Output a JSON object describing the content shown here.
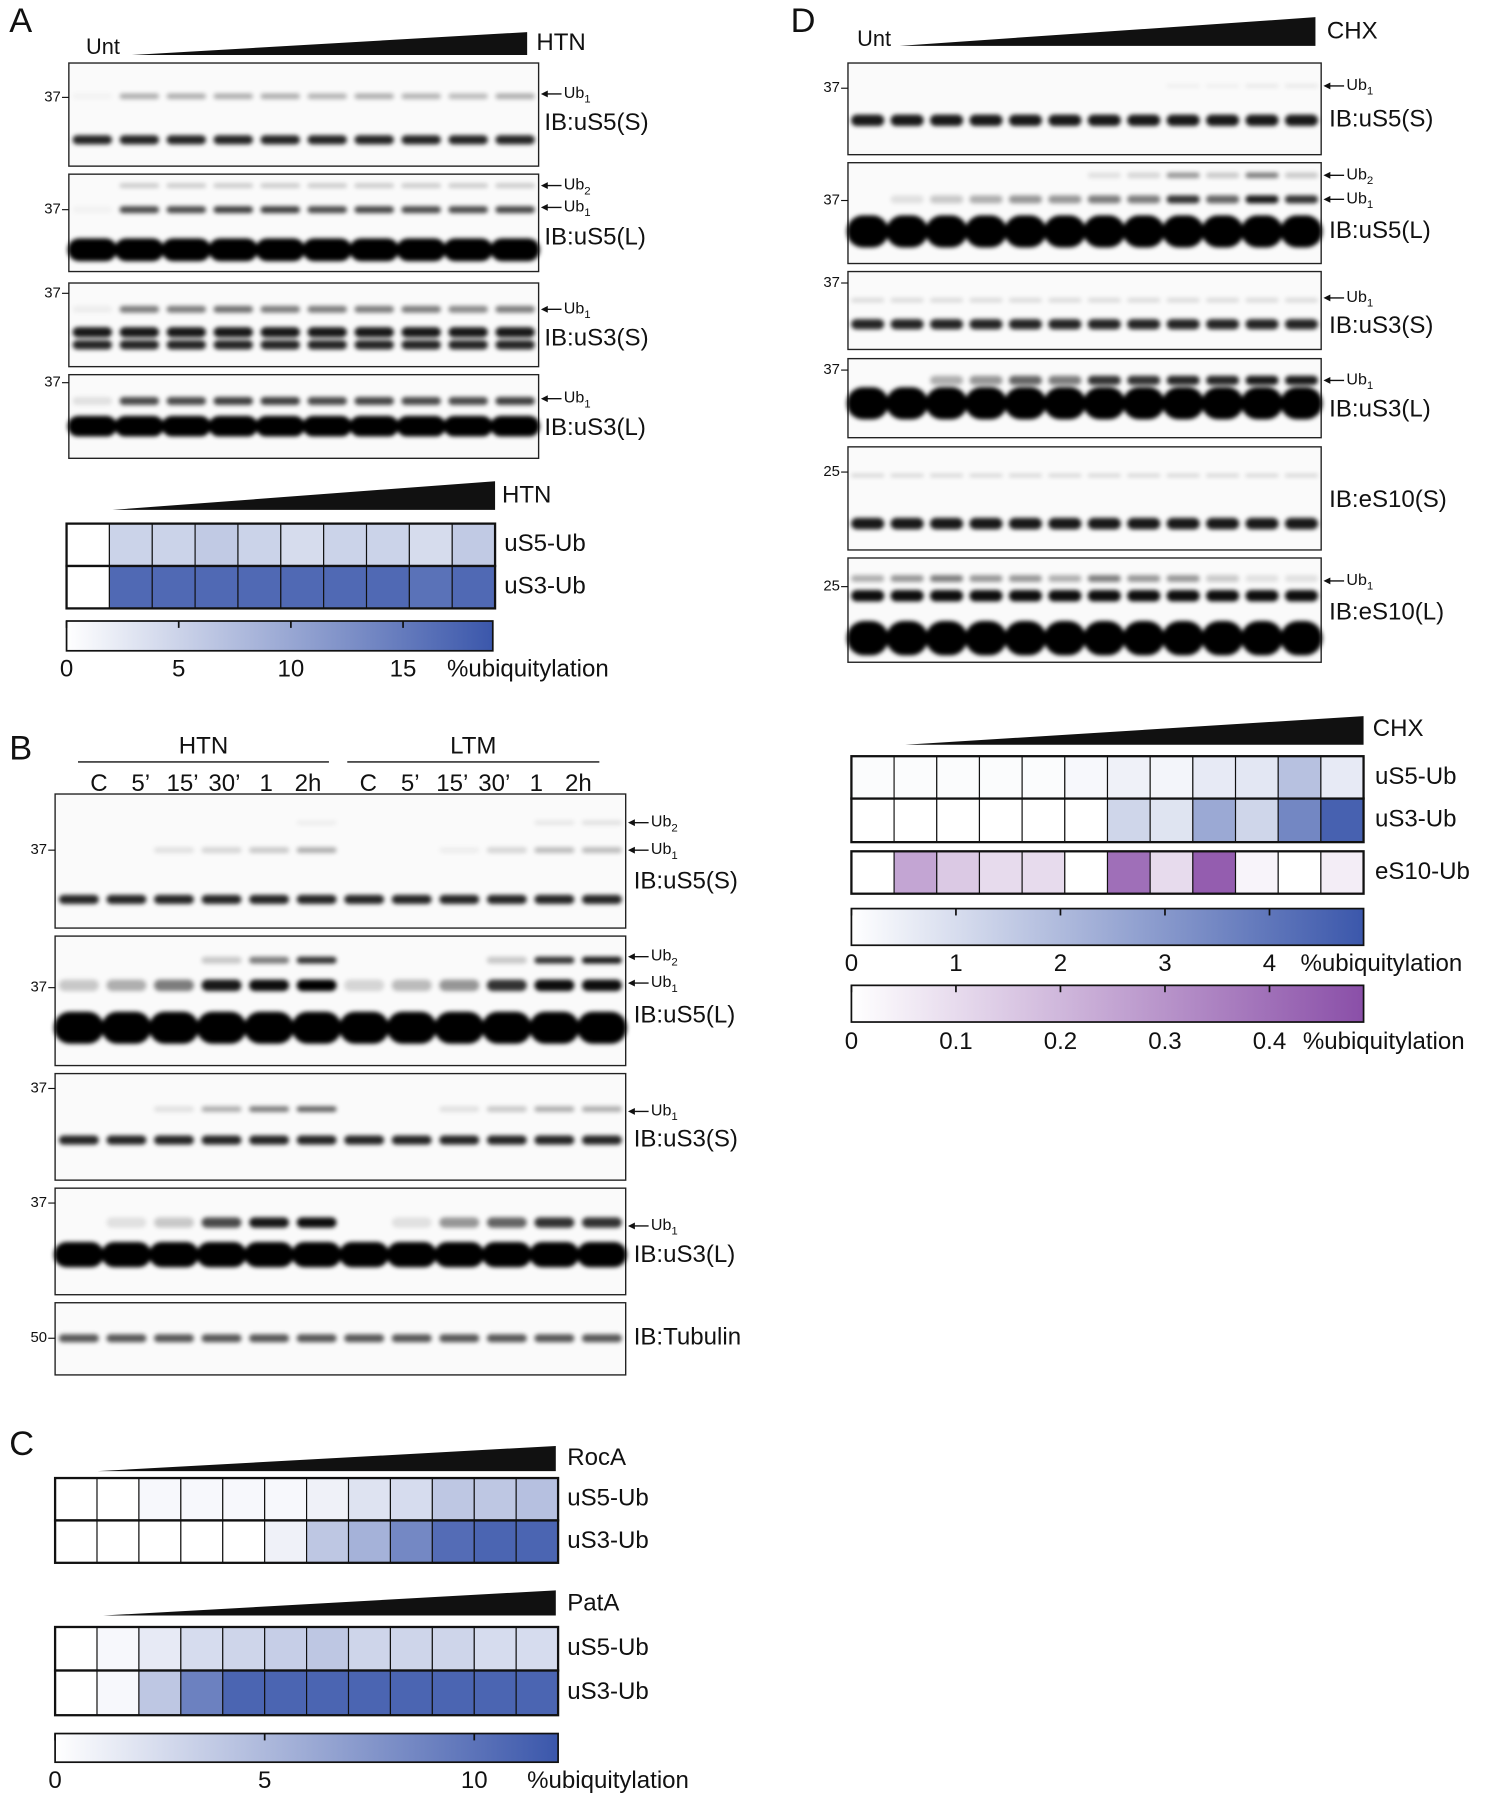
{
  "panels": [
    {
      "label": "A",
      "untreated": "Unt",
      "treatment": "HTN",
      "blots": [
        {
          "mw": "37",
          "markers": [
            {
              "base": "Ub",
              "sub": "1"
            }
          ],
          "antibody": "IB:uS5(S)"
        },
        {
          "mw": "37",
          "markers": [
            {
              "base": "Ub",
              "sub": "2"
            },
            {
              "base": "Ub",
              "sub": "1"
            }
          ],
          "antibody": "IB:uS5(L)"
        },
        {
          "mw": "37",
          "markers": [
            {
              "base": "Ub",
              "sub": "1"
            }
          ],
          "antibody": "IB:uS3(S)"
        },
        {
          "mw": "37",
          "markers": [
            {
              "base": "Ub",
              "sub": "1"
            }
          ],
          "antibody": "IB:uS3(L)"
        }
      ],
      "heatmaps": [
        {
          "treatment": "HTN",
          "rows": [
            {
              "name": "uS5-Ub",
              "color": "#3b57ab",
              "values": [
                0,
                5,
                5,
                6,
                5,
                4,
                5,
                5,
                4,
                6
              ]
            },
            {
              "name": "uS3-Ub",
              "color": "#3b57ab",
              "values": [
                0,
                17,
                17,
                17,
                17,
                17,
                17,
                17,
                16,
                17
              ]
            }
          ]
        }
      ],
      "colorbars": [
        {
          "color": "#3b57ab",
          "lim": [
            0,
            19
          ],
          "ticks": [
            0,
            5,
            10,
            15
          ],
          "label": "%ubiquitylation"
        }
      ]
    },
    {
      "label": "B",
      "groups": [
        {
          "name": "HTN",
          "lanes": [
            "C",
            "5’",
            "15’",
            "30’",
            "1",
            "2h"
          ]
        },
        {
          "name": "LTM",
          "lanes": [
            "C",
            "5’",
            "15’",
            "30’",
            "1",
            "2h"
          ]
        }
      ],
      "blots": [
        {
          "mw": "37",
          "markers": [
            {
              "base": "Ub",
              "sub": "2"
            },
            {
              "base": "Ub",
              "sub": "1"
            }
          ],
          "antibody": "IB:uS5(S)"
        },
        {
          "mw": "37",
          "markers": [
            {
              "base": "Ub",
              "sub": "2"
            },
            {
              "base": "Ub",
              "sub": "1"
            }
          ],
          "antibody": "IB:uS5(L)"
        },
        {
          "mw": "37",
          "markers": [
            {
              "base": "Ub",
              "sub": "1"
            }
          ],
          "antibody": "IB:uS3(S)"
        },
        {
          "mw": "37",
          "markers": [
            {
              "base": "Ub",
              "sub": "1"
            }
          ],
          "antibody": "IB:uS3(L)"
        },
        {
          "mw": "50",
          "markers": [],
          "antibody": "IB:Tubulin"
        }
      ]
    },
    {
      "label": "C",
      "heatmaps": [
        {
          "treatment": "RocA",
          "rows": [
            {
              "name": "uS5-Ub",
              "color": "#3b57ab",
              "values": [
                0,
                0,
                0.5,
                0.5,
                0.5,
                0.5,
                1,
                2,
                2.5,
                4,
                4,
                4.5
              ]
            },
            {
              "name": "uS3-Ub",
              "color": "#3b57ab",
              "values": [
                0,
                0,
                0,
                0,
                0,
                1,
                4,
                5.5,
                8.5,
                10.5,
                11,
                11
              ]
            }
          ]
        },
        {
          "treatment": "PatA",
          "rows": [
            {
              "name": "uS5-Ub",
              "color": "#3b57ab",
              "values": [
                0,
                0.5,
                1.5,
                2.5,
                3,
                3.5,
                4,
                3,
                3,
                3,
                2.5,
                2.5
              ]
            },
            {
              "name": "uS3-Ub",
              "color": "#3b57ab",
              "values": [
                0,
                0.5,
                4,
                9,
                11,
                11,
                11,
                11,
                11,
                11,
                11,
                11
              ]
            }
          ]
        }
      ],
      "colorbars": [
        {
          "color": "#3b57ab",
          "lim": [
            0,
            12
          ],
          "ticks": [
            0,
            5,
            10
          ],
          "label": "%ubiquitylation"
        }
      ]
    },
    {
      "label": "D",
      "untreated": "Unt",
      "treatment": "CHX",
      "blots": [
        {
          "mw": "37",
          "markers": [
            {
              "base": "Ub",
              "sub": "1"
            }
          ],
          "antibody": "IB:uS5(S)"
        },
        {
          "mw": "37",
          "markers": [
            {
              "base": "Ub",
              "sub": "2"
            },
            {
              "base": "Ub",
              "sub": "1"
            }
          ],
          "antibody": "IB:uS5(L)"
        },
        {
          "mw": "37",
          "markers": [
            {
              "base": "Ub",
              "sub": "1"
            }
          ],
          "antibody": "IB:uS3(S)"
        },
        {
          "mw": "37",
          "markers": [
            {
              "base": "Ub",
              "sub": "1"
            }
          ],
          "antibody": "IB:uS3(L)"
        },
        {
          "mw": "25",
          "markers": [],
          "antibody": "IB:eS10(S)"
        },
        {
          "mw": "25",
          "markers": [
            {
              "base": "Ub",
              "sub": "1"
            }
          ],
          "antibody": "IB:eS10(L)"
        }
      ],
      "heatmaps": [
        {
          "treatment": "CHX",
          "rows": [
            {
              "name": "uS5-Ub",
              "color": "#3b57ab",
              "values": [
                0.1,
                0.1,
                0.1,
                0.1,
                0.1,
                0.2,
                0.4,
                0.3,
                0.6,
                0.7,
                1.8,
                0.6
              ]
            },
            {
              "name": "uS3-Ub",
              "color": "#3b57ab",
              "values": [
                0,
                0,
                0,
                0,
                0,
                0,
                1.2,
                0.8,
                2.5,
                1.2,
                3.5,
                4.6
              ]
            },
            {
              "name": "eS10-Ub",
              "color": "#8a4fa8",
              "values": [
                0,
                0.25,
                0.15,
                0.1,
                0.1,
                0,
                0.4,
                0.1,
                0.45,
                0.03,
                0,
                0.05
              ]
            }
          ]
        }
      ],
      "colorbars": [
        {
          "color": "#3b57ab",
          "lim": [
            0,
            4.9
          ],
          "ticks": [
            0,
            1,
            2,
            3,
            4
          ],
          "label": "%ubiquitylation"
        },
        {
          "color": "#8a4fa8",
          "lim": [
            0,
            0.49
          ],
          "ticks": [
            0,
            0.1,
            0.2,
            0.3,
            0.4
          ],
          "label": "%ubiquitylation"
        }
      ]
    }
  ]
}
